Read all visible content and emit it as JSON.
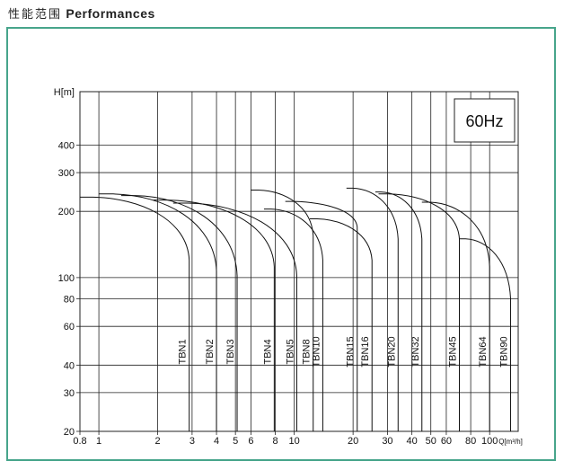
{
  "heading": {
    "cn": "性能范围",
    "en": "Performances"
  },
  "chart_data": {
    "type": "line",
    "x_scale": "log",
    "y_scale": "log",
    "xlim": [
      0.8,
      140
    ],
    "ylim": [
      20,
      700
    ],
    "ylabel": "H[m]",
    "xlabel": "Q[m³/h]",
    "frequency_label": "60Hz",
    "grid": true,
    "x_ticks": [
      {
        "v": 0.8,
        "label": "0.8"
      },
      {
        "v": 1,
        "label": "1"
      },
      {
        "v": 2,
        "label": "2"
      },
      {
        "v": 3,
        "label": "3"
      },
      {
        "v": 4,
        "label": "4"
      },
      {
        "v": 5,
        "label": "5"
      },
      {
        "v": 6,
        "label": "6"
      },
      {
        "v": 8,
        "label": "8"
      },
      {
        "v": 10,
        "label": "10"
      },
      {
        "v": 20,
        "label": "20"
      },
      {
        "v": 30,
        "label": "30"
      },
      {
        "v": 40,
        "label": "40"
      },
      {
        "v": 50,
        "label": "50"
      },
      {
        "v": 60,
        "label": "60"
      },
      {
        "v": 80,
        "label": "80"
      },
      {
        "v": 100,
        "label": "100"
      }
    ],
    "y_ticks": [
      {
        "v": 20,
        "label": "20"
      },
      {
        "v": 30,
        "label": "30"
      },
      {
        "v": 40,
        "label": "40"
      },
      {
        "v": 60,
        "label": "60"
      },
      {
        "v": 80,
        "label": "80"
      },
      {
        "v": 100,
        "label": "100"
      },
      {
        "v": 200,
        "label": "200"
      },
      {
        "v": 300,
        "label": "300"
      },
      {
        "v": 400,
        "label": "400"
      }
    ],
    "series": [
      {
        "name": "TBN1",
        "q_start": 0.8,
        "q_end": 2.9,
        "h_max": 232,
        "h_end": 120
      },
      {
        "name": "TBN2",
        "q_start": 1.0,
        "q_end": 4.0,
        "h_max": 240,
        "h_end": 107
      },
      {
        "name": "TBN3",
        "q_start": 1.3,
        "q_end": 5.1,
        "h_max": 236,
        "h_end": 102
      },
      {
        "name": "TBN4",
        "q_start": 1.9,
        "q_end": 7.9,
        "h_max": 225,
        "h_end": 112
      },
      {
        "name": "TBN5",
        "q_start": 2.4,
        "q_end": 10.3,
        "h_max": 218,
        "h_end": 102
      },
      {
        "name": "TBN8",
        "q_start": 6.0,
        "q_end": 12.5,
        "h_max": 250,
        "h_end": 155
      },
      {
        "name": "TBN10",
        "q_start": 7.0,
        "q_end": 14.0,
        "h_max": 205,
        "h_end": 120
      },
      {
        "name": "TBN15",
        "q_start": 9.0,
        "q_end": 21.0,
        "h_max": 222,
        "h_end": 170
      },
      {
        "name": "TBN16",
        "q_start": 12.0,
        "q_end": 25.0,
        "h_max": 185,
        "h_end": 120
      },
      {
        "name": "TBN20",
        "q_start": 18.5,
        "q_end": 34.0,
        "h_max": 255,
        "h_end": 150
      },
      {
        "name": "TBN32",
        "q_start": 26.0,
        "q_end": 45.0,
        "h_max": 245,
        "h_end": 150
      },
      {
        "name": "TBN45",
        "q_start": 27.0,
        "q_end": 70.0,
        "h_max": 240,
        "h_end": 150
      },
      {
        "name": "TBN64",
        "q_start": 45.0,
        "q_end": 100.0,
        "h_max": 220,
        "h_end": 112
      },
      {
        "name": "TBN90",
        "q_start": 70.0,
        "q_end": 128.0,
        "h_max": 150,
        "h_end": 80
      }
    ]
  }
}
